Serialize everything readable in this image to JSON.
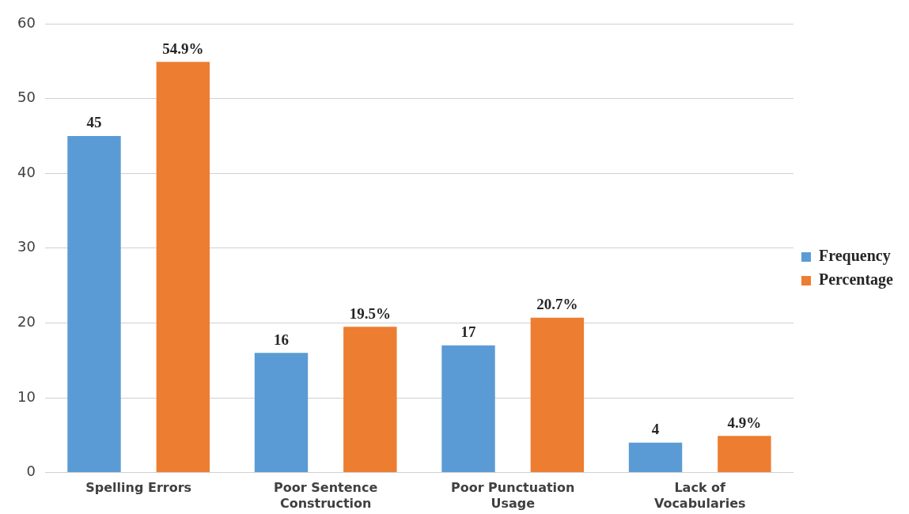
{
  "chart_data": {
    "type": "bar",
    "categories": [
      "Spelling Errors",
      "Poor Sentence Construction",
      "Poor Punctuation Usage",
      "Lack of Vocabularies"
    ],
    "series": [
      {
        "name": "Frequency",
        "color": "#5b9bd5",
        "values": [
          45,
          16,
          17,
          4
        ],
        "value_labels": [
          "45",
          "16",
          "17",
          "4"
        ]
      },
      {
        "name": "Percentage",
        "color": "#ed7d31",
        "values": [
          54.9,
          19.5,
          20.7,
          4.9
        ],
        "value_labels": [
          "54.9%",
          "19.5%",
          "20.7%",
          "4.9%"
        ]
      }
    ],
    "ylim": [
      0,
      60
    ],
    "yticks": [
      0,
      10,
      20,
      30,
      40,
      50,
      60
    ],
    "grid": "y",
    "legend": "right"
  }
}
